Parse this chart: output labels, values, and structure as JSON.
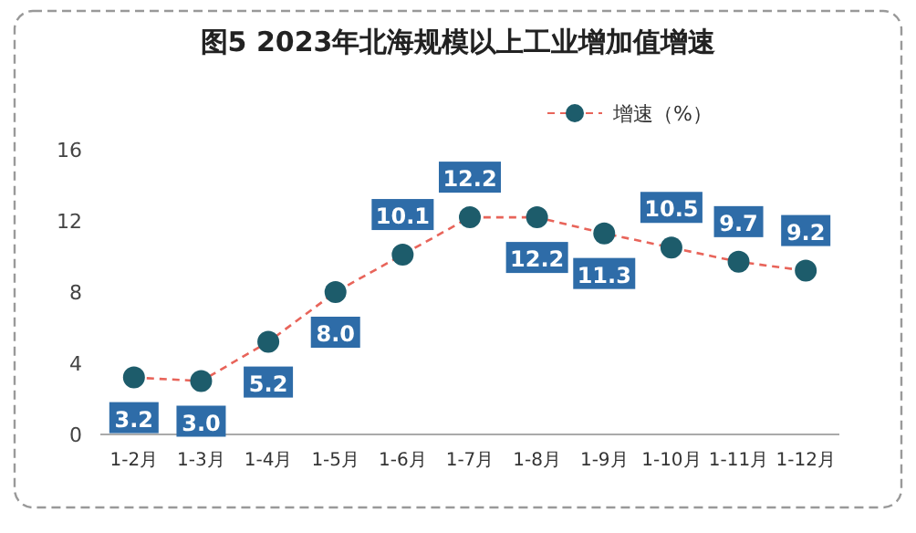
{
  "chart_data": {
    "type": "line",
    "title": "图5   2023年北海规模以上工业增加值增速",
    "categories": [
      "1-2月",
      "1-3月",
      "1-4月",
      "1-5月",
      "1-6月",
      "1-7月",
      "1-8月",
      "1-9月",
      "1-10月",
      "1-11月",
      "1-12月"
    ],
    "series": [
      {
        "name": "增速（%）",
        "color": "#e8645a",
        "colors": [
          "#1d5c6b",
          "#1d5c6b",
          "#1d5c6b",
          "#1d5c6b",
          "#1d5c6b",
          "#1d5c6b",
          "#1d5c6b",
          "#1d5c6b",
          "#1d5c6b",
          "#1d5c6b",
          "#1d5c6b"
        ],
        "values": [
          3.2,
          3.0,
          5.2,
          8.0,
          10.1,
          12.2,
          12.2,
          11.3,
          10.5,
          9.7,
          9.2
        ],
        "value_labels": [
          "3.2",
          "3.0",
          "5.2",
          "8.0",
          "10.1",
          "12.2",
          "12.2",
          "11.3",
          "10.5",
          "9.7",
          "9.2"
        ]
      }
    ],
    "ylim": [
      0,
      16
    ],
    "yticks": [
      0,
      4,
      8,
      12,
      16
    ],
    "grid": false,
    "legend": "top right",
    "marker": "circle",
    "line_style": "dashed"
  }
}
